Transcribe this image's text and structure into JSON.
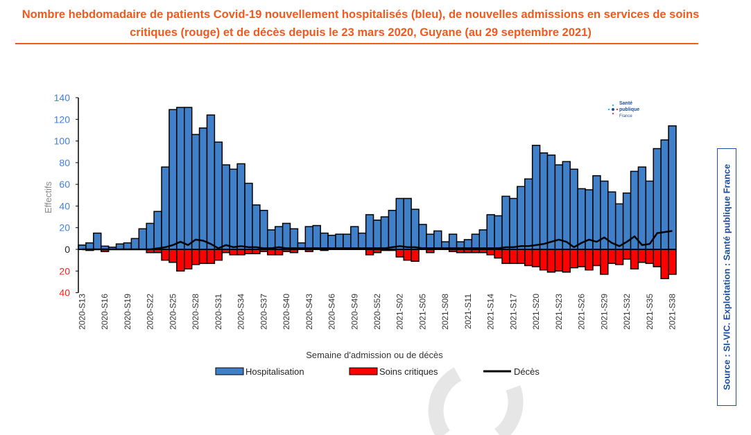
{
  "title": "Nombre hebdomadaire de patients Covid-19 nouvellement hospitalisés (bleu), de nouvelles admissions en services de soins critiques (rouge) et de décès depuis le 23 mars 2020, Guyane (au 29 septembre 2021)",
  "source": "Source : SI-VIC. Exploitation : Santé publique France",
  "logo": "Santé publique France",
  "chart_data": {
    "type": "bar",
    "xlabel": "Semaine d'admission ou de décès",
    "ylabel": "Effectifs",
    "ylim": [
      -40,
      140
    ],
    "yticks": [
      {
        "v": 140,
        "label": "140"
      },
      {
        "v": 120,
        "label": "120"
      },
      {
        "v": 100,
        "label": "100"
      },
      {
        "v": 80,
        "label": "80"
      },
      {
        "v": 60,
        "label": "60"
      },
      {
        "v": 40,
        "label": "40"
      },
      {
        "v": 20,
        "label": "20"
      },
      {
        "v": 0,
        "label": "0"
      },
      {
        "v": -20,
        "label": "20"
      },
      {
        "v": -40,
        "label": "40"
      }
    ],
    "categories": [
      "2020-S13",
      "2020-S14",
      "2020-S15",
      "2020-S16",
      "2020-S17",
      "2020-S18",
      "2020-S19",
      "2020-S20",
      "2020-S21",
      "2020-S22",
      "2020-S23",
      "2020-S24",
      "2020-S25",
      "2020-S26",
      "2020-S27",
      "2020-S28",
      "2020-S29",
      "2020-S30",
      "2020-S31",
      "2020-S32",
      "2020-S33",
      "2020-S34",
      "2020-S35",
      "2020-S36",
      "2020-S37",
      "2020-S38",
      "2020-S39",
      "2020-S40",
      "2020-S41",
      "2020-S42",
      "2020-S43",
      "2020-S44",
      "2020-S45",
      "2020-S46",
      "2020-S47",
      "2020-S48",
      "2020-S49",
      "2020-S50",
      "2020-S51",
      "2020-S52",
      "2020-S53",
      "2021-S01",
      "2021-S02",
      "2021-S03",
      "2021-S04",
      "2021-S05",
      "2021-S06",
      "2021-S07",
      "2021-S08",
      "2021-S09",
      "2021-S10",
      "2021-S11",
      "2021-S12",
      "2021-S13",
      "2021-S14",
      "2021-S15",
      "2021-S16",
      "2021-S17",
      "2021-S18",
      "2021-S19",
      "2021-S20",
      "2021-S21",
      "2021-S22",
      "2021-S23",
      "2021-S24",
      "2021-S25",
      "2021-S26",
      "2021-S27",
      "2021-S28",
      "2021-S29",
      "2021-S30",
      "2021-S31",
      "2021-S32",
      "2021-S33",
      "2021-S34",
      "2021-S35",
      "2021-S36",
      "2021-S37",
      "2021-S38"
    ],
    "series": [
      {
        "name": "Hospitalisation",
        "color": "#4080c8",
        "type": "bar",
        "values": [
          4,
          6,
          15,
          3,
          2,
          5,
          6,
          10,
          19,
          24,
          35,
          76,
          129,
          131,
          131,
          106,
          112,
          124,
          99,
          78,
          74,
          79,
          61,
          41,
          36,
          18,
          21,
          24,
          19,
          6,
          21,
          22,
          15,
          13,
          14,
          14,
          21,
          15,
          32,
          27,
          30,
          36,
          47,
          47,
          37,
          23,
          14,
          17,
          7,
          14,
          7,
          9,
          14,
          18,
          32,
          31,
          49,
          47,
          58,
          65,
          96,
          89,
          87,
          78,
          81,
          74,
          56,
          55,
          68,
          63,
          53,
          42,
          52,
          72,
          76,
          63,
          93,
          101,
          114
        ]
      },
      {
        "name": "Soins critiques",
        "color": "#ff0000",
        "type": "bar-negative",
        "values": [
          0,
          1,
          0,
          2,
          0,
          0,
          0,
          0,
          0,
          3,
          3,
          10,
          12,
          20,
          18,
          14,
          13,
          13,
          10,
          3,
          5,
          5,
          4,
          4,
          2,
          5,
          5,
          2,
          3,
          0,
          2,
          0,
          1,
          0,
          0,
          0,
          0,
          0,
          5,
          3,
          1,
          1,
          7,
          10,
          11,
          0,
          3,
          0,
          0,
          2,
          3,
          3,
          3,
          3,
          5,
          8,
          13,
          13,
          13,
          15,
          16,
          19,
          21,
          20,
          21,
          17,
          16,
          19,
          15,
          23,
          13,
          14,
          9,
          18,
          12,
          13,
          16,
          27,
          23
        ]
      },
      {
        "name": "Décès",
        "color": "#000000",
        "type": "line",
        "values": [
          0,
          0,
          0,
          0,
          0,
          0,
          0,
          0,
          0,
          0,
          1,
          2,
          4,
          7,
          4,
          9,
          8,
          5,
          1,
          4,
          2,
          3,
          2,
          2,
          1,
          1,
          2,
          1,
          1,
          1,
          1,
          1,
          1,
          1,
          1,
          1,
          1,
          1,
          1,
          1,
          1,
          2,
          3,
          2,
          2,
          1,
          1,
          1,
          1,
          1,
          1,
          1,
          1,
          1,
          1,
          1,
          2,
          2,
          3,
          3,
          4,
          5,
          7,
          9,
          7,
          2,
          6,
          9,
          7,
          11,
          6,
          3,
          7,
          12,
          4,
          5,
          15,
          16,
          17
        ]
      }
    ],
    "legend_position": "bottom",
    "grid": false
  }
}
